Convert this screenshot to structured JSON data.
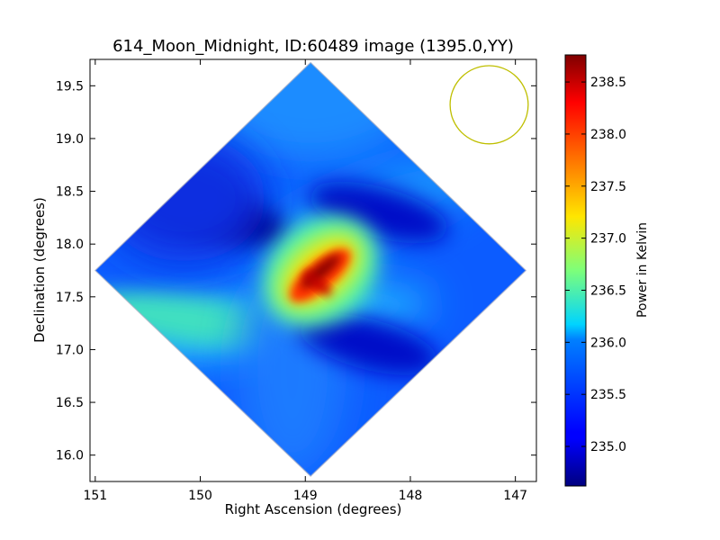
{
  "chart_data": {
    "type": "heatmap",
    "title": "614_Moon_Midnight, ID:60489 image (1395.0,YY)",
    "xlabel": "Right Ascension (degrees)",
    "ylabel": "Declination (degrees)",
    "xlim": [
      151.05,
      146.8
    ],
    "ylim": [
      15.75,
      19.75
    ],
    "x_ticks": [
      151,
      150,
      149,
      148,
      147
    ],
    "x_tick_labels": [
      "151",
      "150",
      "149",
      "148",
      "147"
    ],
    "y_ticks": [
      16.0,
      16.5,
      17.0,
      17.5,
      18.0,
      18.5,
      19.0,
      19.5
    ],
    "y_tick_labels": [
      "16.0",
      "16.5",
      "17.0",
      "17.5",
      "18.0",
      "18.5",
      "19.0",
      "19.5"
    ],
    "colorbar": {
      "label": "Power in Kelvin",
      "range": [
        234.62,
        238.76
      ],
      "ticks": [
        235.0,
        235.5,
        236.0,
        236.5,
        237.0,
        237.5,
        238.0,
        238.5
      ],
      "tick_labels": [
        "235.0",
        "235.5",
        "236.0",
        "236.5",
        "237.0",
        "237.5",
        "238.0",
        "238.5"
      ],
      "colormap": "jet"
    },
    "grid": false,
    "footprint": {
      "shape": "diamond",
      "center": [
        148.95,
        17.75
      ],
      "vertices": [
        [
          148.95,
          19.72
        ],
        [
          151.0,
          17.75
        ],
        [
          148.95,
          15.8
        ],
        [
          146.9,
          17.75
        ]
      ]
    },
    "features": [
      {
        "type": "peak",
        "x": 148.85,
        "y": 17.8,
        "value": 238.7
      },
      {
        "type": "trough",
        "x": 149.85,
        "y": 18.28,
        "value": 234.8
      },
      {
        "type": "trough",
        "x": 148.3,
        "y": 18.3,
        "value": 235.1
      },
      {
        "type": "trough",
        "x": 148.4,
        "y": 17.05,
        "value": 235.1
      }
    ],
    "beam_circle": {
      "x": 147.25,
      "y": 19.32,
      "radius_deg": 0.37,
      "color": "#bfbf00"
    }
  }
}
